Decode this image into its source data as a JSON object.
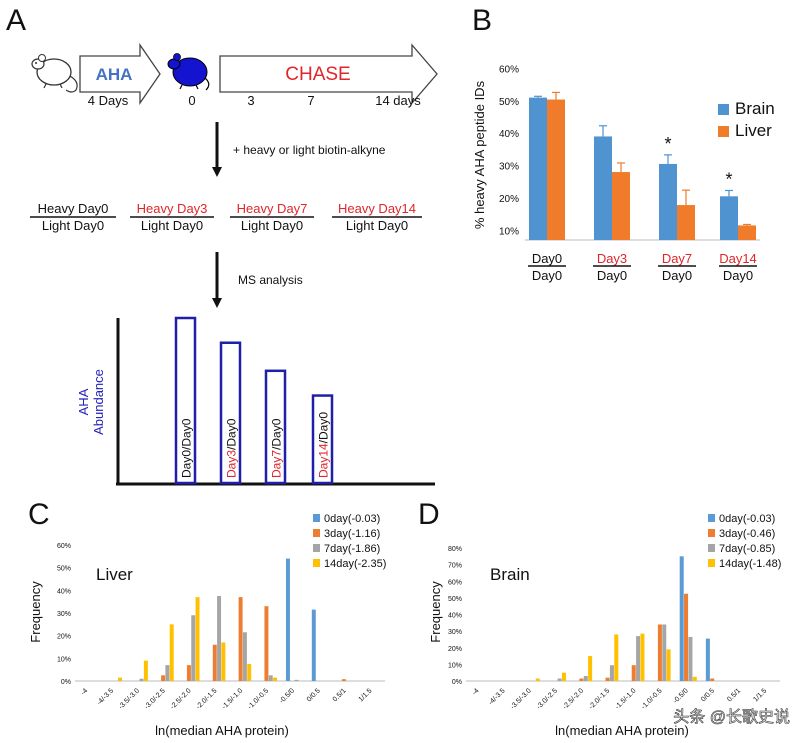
{
  "colors": {
    "brain": "#4f93d0",
    "liver": "#f07c2b",
    "day0": "#5b9bd5",
    "day3": "#ed7d31",
    "day7": "#a5a5a5",
    "day14": "#ffc000",
    "red_text": "#e0262a",
    "aha_blue": "#4472c4",
    "box_blue": "#1f1fa8"
  },
  "panel_letters": {
    "a": "A",
    "b": "B",
    "c": "C",
    "d": "D"
  },
  "panel_a": {
    "aha_label": "AHA",
    "aha_duration": "4 Days",
    "day_zero": "0",
    "chase_label": "CHASE",
    "chase_ticks": [
      "3",
      "7",
      "14 days"
    ],
    "step1_note": "+ heavy or light biotin-alkyne",
    "ratios": [
      {
        "top": "Heavy Day0",
        "bottom": "Light Day0",
        "highlight": false
      },
      {
        "top": "Heavy Day3",
        "bottom": "Light Day0",
        "highlight": true
      },
      {
        "top": "Heavy Day7",
        "bottom": "Light Day0",
        "highlight": true
      },
      {
        "top": "Heavy Day14",
        "bottom": "Light Day0",
        "highlight": true
      }
    ],
    "step2_note": "MS analysis",
    "ylabel_line1": "AHA",
    "ylabel_line2": "Abundance",
    "boxes": [
      {
        "num": "Day0",
        "den": "/Day0",
        "highlight": false,
        "level": 1.0
      },
      {
        "num": "Day3",
        "den": "/Day0",
        "highlight": true,
        "level": 0.85
      },
      {
        "num": "Day7",
        "den": "/Day0",
        "highlight": true,
        "level": 0.68
      },
      {
        "num": "Day14",
        "den": "/Day0",
        "highlight": true,
        "level": 0.53
      }
    ]
  },
  "chart_data": [
    {
      "panel": "B",
      "type": "bar",
      "ylabel": "% heavy AHA peptide IDs",
      "yticks": [
        "10%",
        "20%",
        "30%",
        "40%",
        "50%",
        "60%"
      ],
      "ylim": [
        7,
        62
      ],
      "categories": [
        {
          "num": "Day0",
          "den": "Day0",
          "highlight": false
        },
        {
          "num": "Day3",
          "den": "Day0",
          "highlight": true
        },
        {
          "num": "Day7",
          "den": "Day0",
          "highlight": true
        },
        {
          "num": "Day14",
          "den": "Day0",
          "highlight": true
        }
      ],
      "series": [
        {
          "name": "Brain",
          "values": [
            51,
            39,
            30.5,
            20.5
          ],
          "errors": [
            0.4,
            3.3,
            2.8,
            1.8
          ]
        },
        {
          "name": "Liver",
          "values": [
            50.4,
            28,
            17.8,
            11.5
          ],
          "errors": [
            2.2,
            2.8,
            4.6,
            0.3
          ]
        }
      ],
      "annotations": [
        "",
        "",
        "*",
        "*"
      ],
      "legend_position": "right"
    },
    {
      "panel": "C",
      "type": "bar",
      "inset_label": "Liver",
      "xlabel": "ln(median AHA protein)",
      "ylabel": "Frequency",
      "yticks": [
        "0%",
        "10%",
        "20%",
        "30%",
        "40%",
        "50%",
        "60%"
      ],
      "ylim": [
        0,
        60
      ],
      "categories": [
        "-4",
        "-4/-3.5",
        "-3.5/-3.0",
        "-3.0/-2.5",
        "-2.5/-2.0",
        "-2.0/-1.5",
        "-1.5/-1.0",
        "-1.0/-0.5",
        "-0.5/0",
        "0/0.5",
        "0.5/1",
        "1/1.5"
      ],
      "series": [
        {
          "name": "0day(-0.03)",
          "values": [
            0,
            0,
            0,
            0,
            0,
            0,
            0,
            0,
            54,
            31.5,
            0,
            0
          ]
        },
        {
          "name": "3day(-1.16)",
          "values": [
            0,
            0,
            0,
            2.5,
            7,
            16,
            37,
            33,
            0,
            0,
            0.8,
            0
          ]
        },
        {
          "name": "7day(-1.86)",
          "values": [
            0,
            0,
            1,
            7,
            29,
            37.5,
            21.5,
            2.5,
            0.5,
            0,
            0,
            0
          ]
        },
        {
          "name": "14day(-2.35)",
          "values": [
            0,
            1.5,
            9,
            25,
            37,
            17,
            7.5,
            1.5,
            0,
            0,
            0,
            0
          ]
        }
      ],
      "legend_position": "top-right"
    },
    {
      "panel": "D",
      "type": "bar",
      "inset_label": "Brain",
      "xlabel": "ln(median AHA protein)",
      "ylabel": "Frequency",
      "yticks": [
        "0%",
        "10%",
        "20%",
        "30%",
        "40%",
        "50%",
        "60%",
        "70%",
        "80%"
      ],
      "ylim": [
        0,
        80
      ],
      "categories": [
        "-4",
        "-4/-3.5",
        "-3.5/-3.0",
        "-3.0/-2.5",
        "-2.5/-2.0",
        "-2.0/-1.5",
        "-1.5/-1.0",
        "-1.0/-0.5",
        "-0.5/0",
        "0/0.5",
        "0.5/1",
        "1/1.5"
      ],
      "series": [
        {
          "name": "0day(-0.03)",
          "values": [
            0,
            0,
            0,
            0,
            0,
            0,
            0,
            0,
            75,
            25.5,
            0,
            0
          ]
        },
        {
          "name": "3day(-0.46)",
          "values": [
            0,
            0,
            0,
            0,
            1.5,
            2,
            9.5,
            34,
            52.5,
            1.5,
            0,
            0
          ]
        },
        {
          "name": "7day(-0.85)",
          "values": [
            0,
            0,
            0,
            1.5,
            3,
            9.5,
            27,
            34,
            26.5,
            0,
            0,
            0
          ]
        },
        {
          "name": "14day(-1.48)",
          "values": [
            0,
            0,
            1.5,
            5,
            15,
            28,
            28.5,
            19,
            2.5,
            0,
            0,
            0
          ]
        }
      ],
      "legend_position": "top-right"
    }
  ],
  "watermark": "头条 @长歌史说"
}
